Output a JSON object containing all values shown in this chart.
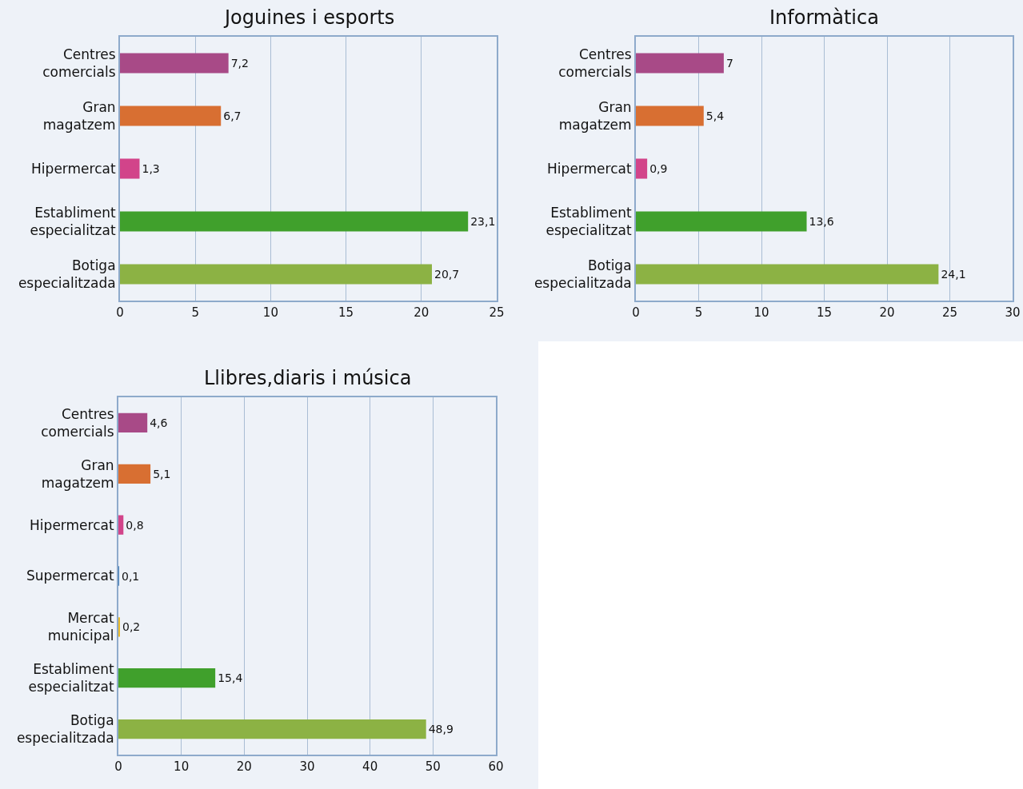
{
  "chart_data": [
    {
      "type": "bar",
      "orientation": "horizontal",
      "title": "Joguines i esports",
      "grid": "x",
      "categories": [
        "Centres comercials",
        "Gran magatzem",
        "Hipermercat",
        "Establiment especialitzat",
        "Botiga especialitzada"
      ],
      "values": [
        7.2,
        6.7,
        1.3,
        23.1,
        20.7
      ],
      "value_labels": [
        "7,2",
        "6,7",
        "1,3",
        "23,1",
        "20,7"
      ],
      "colors": [
        "#a84a87",
        "#d86f32",
        "#d2448a",
        "#40a02c",
        "#8cb244"
      ],
      "xlim": [
        0,
        25
      ],
      "xticks": [
        0,
        5,
        10,
        15,
        20,
        25
      ]
    },
    {
      "type": "bar",
      "orientation": "horizontal",
      "title": "Informàtica",
      "grid": "x",
      "categories": [
        "Centres comercials",
        "Gran magatzem",
        "Hipermercat",
        "Establiment especialitzat",
        "Botiga especialitzada"
      ],
      "values": [
        7,
        5.4,
        0.9,
        13.6,
        24.1
      ],
      "value_labels": [
        "7",
        "5,4",
        "0,9",
        "13,6",
        "24,1"
      ],
      "colors": [
        "#a84a87",
        "#d86f32",
        "#d2448a",
        "#40a02c",
        "#8cb244"
      ],
      "xlim": [
        0,
        30
      ],
      "xticks": [
        0,
        5,
        10,
        15,
        20,
        25,
        30
      ]
    },
    {
      "type": "bar",
      "orientation": "horizontal",
      "title": "Llibres,diaris i música",
      "grid": "x",
      "categories": [
        "Centres comercials",
        "Gran magatzem",
        "Hipermercat",
        "Supermercat",
        "Mercat municipal",
        "Establiment especialitzat",
        "Botiga especialitzada"
      ],
      "values": [
        4.6,
        5.1,
        0.8,
        0.1,
        0.2,
        15.4,
        48.9
      ],
      "value_labels": [
        "4,6",
        "5,1",
        "0,8",
        "0,1",
        "0,2",
        "15,4",
        "48,9"
      ],
      "colors": [
        "#a84a87",
        "#d86f32",
        "#d2448a",
        "#3f7ab5",
        "#e8b92a",
        "#40a02c",
        "#8cb244"
      ],
      "xlim": [
        0,
        60
      ],
      "xticks": [
        0,
        10,
        20,
        30,
        40,
        50,
        60
      ]
    }
  ]
}
